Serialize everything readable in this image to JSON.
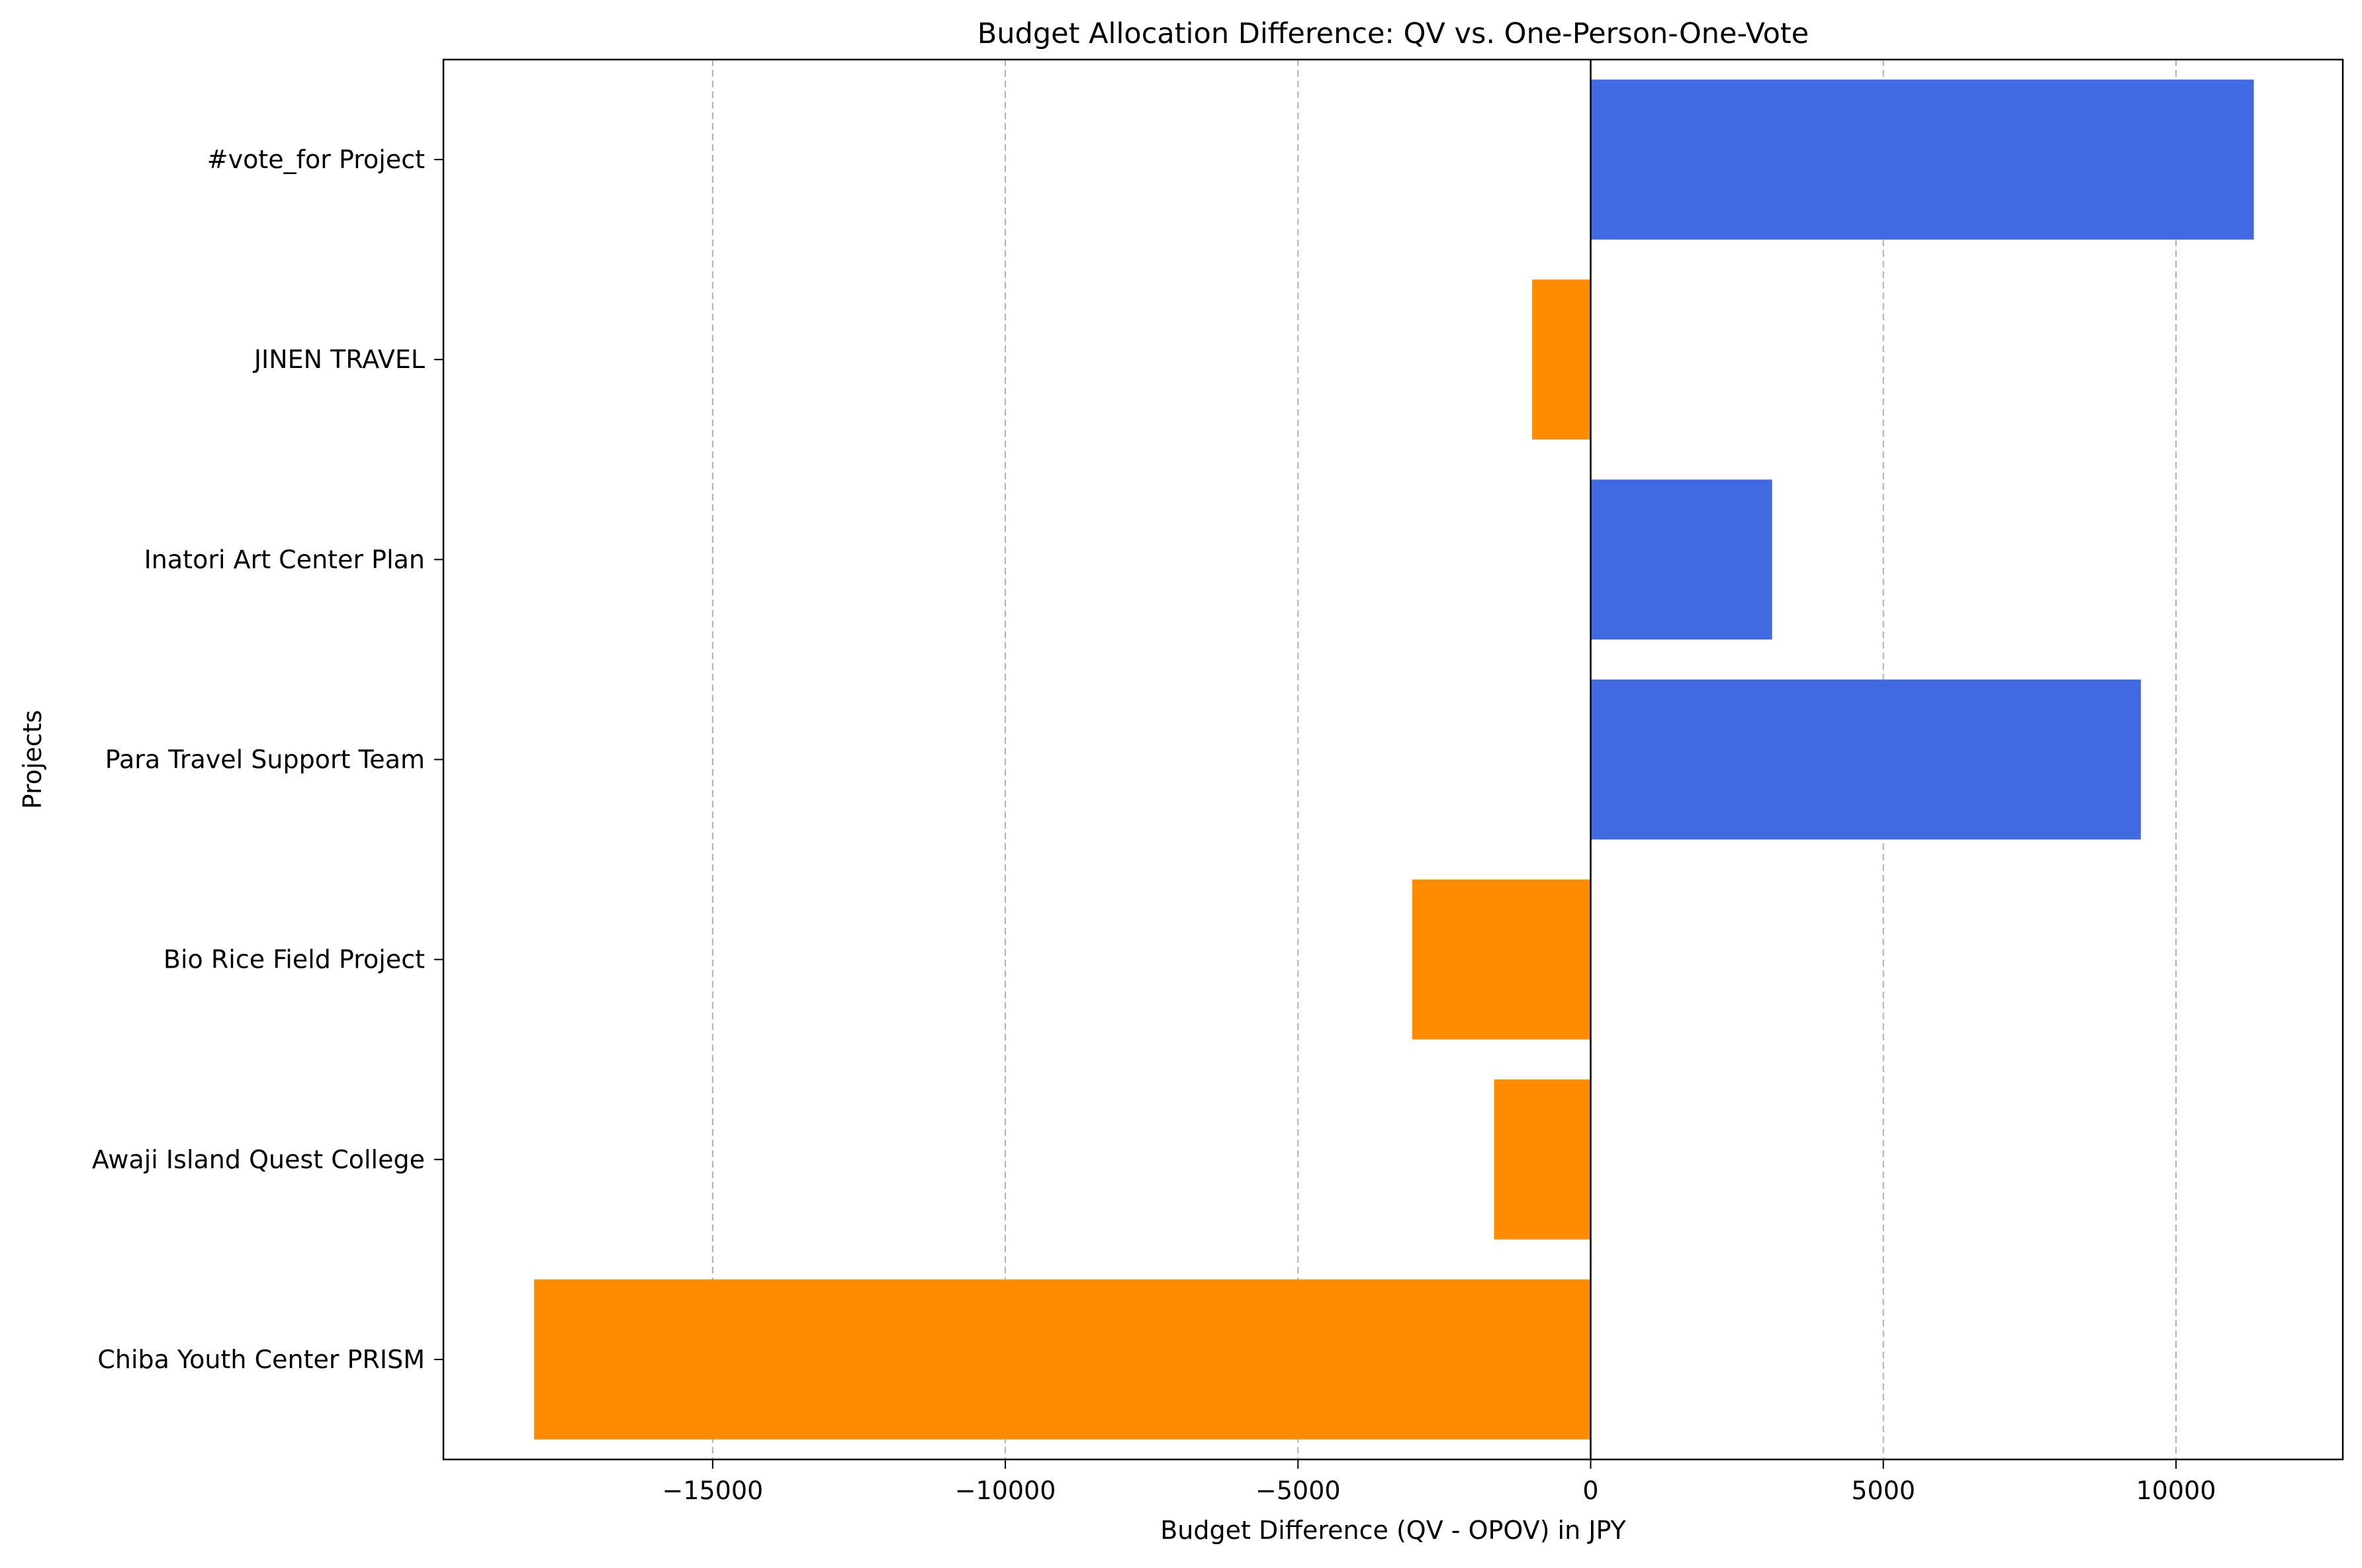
{
  "chart_data": {
    "type": "bar",
    "orientation": "horizontal",
    "title": "Budget Allocation Difference: QV vs. One-Person-One-Vote",
    "xlabel": "Budget Difference (QV - OPOV) in JPY",
    "ylabel": "Projects",
    "categories": [
      "Chiba Youth Center PRISM",
      "Awaji Island Quest College",
      "Bio Rice Field Project",
      "Para Travel Support Team",
      "Inatori Art Center Plan",
      "JINEN TRAVEL",
      "#vote_for Project"
    ],
    "values": [
      -18050,
      -1650,
      -3050,
      9400,
      3100,
      -1000,
      11330
    ],
    "xlim": [
      -19600,
      12850
    ],
    "xticks": [
      -15000,
      -10000,
      -5000,
      0,
      5000,
      10000
    ],
    "xtick_labels": [
      "−15000",
      "−10000",
      "−5000",
      "0",
      "5000",
      "10000"
    ],
    "grid": "x-dashed",
    "zero_line": true,
    "colors": {
      "positive": "#4169E1",
      "negative": "#FF8C00",
      "grid": "#b0b0b0",
      "axis": "#000000"
    }
  }
}
